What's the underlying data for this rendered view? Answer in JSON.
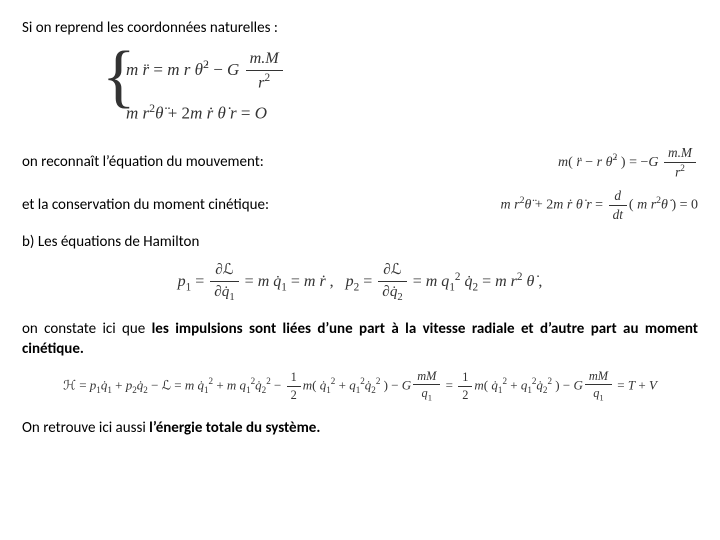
{
  "intro": "Si on reprend les coordonnées naturelles :",
  "sys_eq1_html": "<span class='it'>m r̈</span> = <span class='it'>m r θ̇</span><sup>2</sup> − <span class='it'>G</span> <span class='frac'><span class='num'><span class='it'>m.M</span></span><span class='den'><span class='it'>r</span><sup>2</sup></span></span>",
  "sys_eq2_html": "<span class='it'>m r</span><sup>2</sup><span class='it'>θ̈</span> + 2<span class='it'>m ṙ θ̇ r</span> = <span class='it'>O</span>",
  "line_motion_text": "on reconnaît l’équation du mouvement:",
  "line_motion_math_html": "<span class='it'>m</span>( <span class='it'>r̈</span> − <span class='it'>r θ̇</span><sup>2</sup> ) = −<span class='it'>G</span> <span class='frac'><span class='num'><span class='it'>m.M</span></span><span class='den'><span class='it'>r</span><sup>2</sup></span></span>",
  "line_angmom_text": "et la conservation du moment cinétique:",
  "line_angmom_math_html": "<span class='it'>m r</span><sup>2</sup><span class='it'>θ̈</span> + 2<span class='it'>m ṙ θ̇ r</span> = <span class='frac'><span class='num'><span class='it'>d</span></span><span class='den'><span class='it'>dt</span></span></span>( <span class='it'>m r</span><sup>2</sup><span class='it'>θ̇</span> ) = 0",
  "section_b": "b) Les équations de Hamilton",
  "eq_p_html": "<span class='it'>p</span><sub>1</sub> = <span class='frac'><span class='num'>∂ℒ</span><span class='den'>∂<span class='it'>q̇</span><sub>1</sub></span></span> = <span class='it'>m q̇</span><sub>1</sub> = <span class='it'>m ṙ</span> , &nbsp; <span class='it'>p</span><sub>2</sub> = <span class='frac'><span class='num'>∂ℒ</span><span class='den'>∂<span class='it'>q̇</span><sub>2</sub></span></span> = <span class='it'>m q</span><sub>1</sub><sup>2</sup> <span class='it'>q̇</span><sub>2</sub> = <span class='it'>m r</span><sup>2</sup> <span class='it'>θ̇</span> ,",
  "para_constat_html": "on constate ici que <b>les impulsions sont liées d’une part à la vitesse radiale et d’autre part au moment cinétique.</b>",
  "eq_h_html": "ℋ = <span class='it'>p</span><sub>1</sub><span class='it'>q̇</span><sub>1</sub> + <span class='it'>p</span><sub>2</sub><span class='it'>q̇</span><sub>2</sub> − ℒ = <span class='it'>m q̇</span><sub>1</sub><sup>2</sup> + <span class='it'>m q</span><sub>1</sub><sup>2</sup><span class='it'>q̇</span><sub>2</sub><sup>2</sup> − <span class='frac'><span class='num'>1</span><span class='den'>2</span></span><span class='it'>m</span>( <span class='it'>q̇</span><sub>1</sub><sup>2</sup> + <span class='it'>q</span><sub>1</sub><sup>2</sup><span class='it'>q̇</span><sub>2</sub><sup>2</sup> ) − <span class='it'>G</span><span class='frac'><span class='num'><span class='it'>mM</span></span><span class='den'><span class='it'>q</span><sub>1</sub></span></span> = <span class='frac'><span class='num'>1</span><span class='den'>2</span></span><span class='it'>m</span>( <span class='it'>q̇</span><sub>1</sub><sup>2</sup> + <span class='it'>q</span><sub>1</sub><sup>2</sup><span class='it'>q̇</span><sub>2</sub><sup>2</sup> ) − <span class='it'>G</span><span class='frac'><span class='num'><span class='it'>mM</span></span><span class='den'><span class='it'>q</span><sub>1</sub></span></span> = <span class='it'>T</span> + <span class='it'>V</span>",
  "final_html": "On retrouve ici aussi <b>l’énergie totale du système.</b>"
}
